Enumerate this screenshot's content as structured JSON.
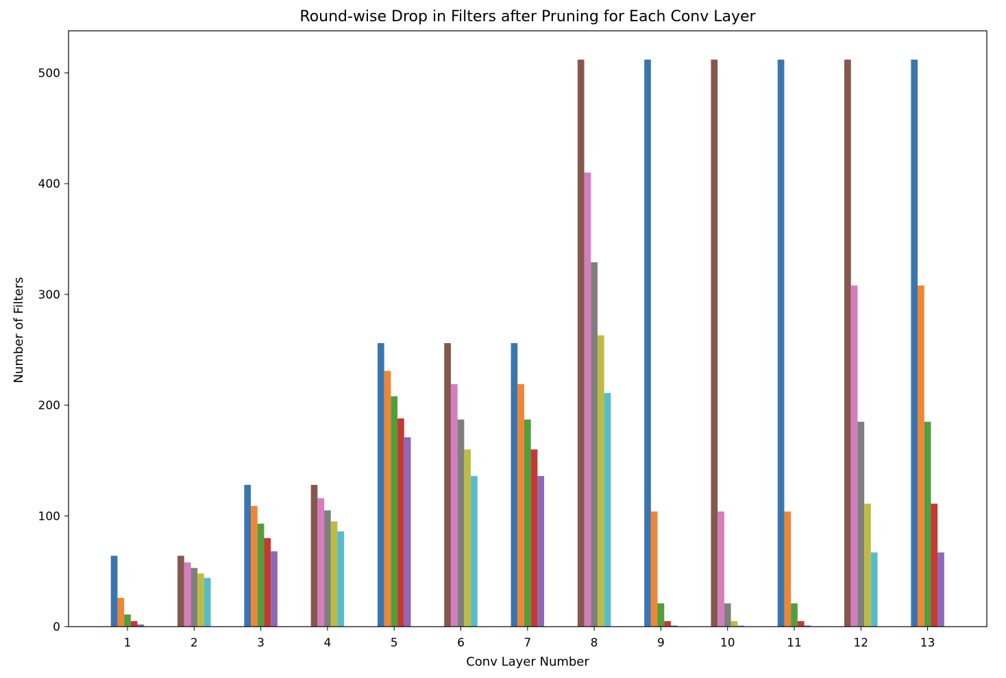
{
  "chart_data": {
    "type": "bar",
    "title": "Round-wise Drop in Filters after Pruning for Each Conv Layer",
    "xlabel": "Conv Layer Number",
    "ylabel": "Number of Filters",
    "ylim": [
      0,
      538
    ],
    "yticks": [
      0,
      100,
      200,
      300,
      400,
      500
    ],
    "categories": [
      "1",
      "2",
      "3",
      "4",
      "5",
      "6",
      "7",
      "8",
      "9",
      "10",
      "11",
      "12",
      "13"
    ],
    "grid": false,
    "palette": [
      "#3b75af",
      "#ef8636",
      "#519e3e",
      "#c53932",
      "#8d69b8",
      "#84584e",
      "#d57dbf",
      "#7f7f7f",
      "#bcbc45",
      "#58bbcc"
    ],
    "groups": [
      {
        "category": "1",
        "colors": [
          0,
          1,
          2,
          3,
          4
        ],
        "values": [
          64,
          26,
          11,
          5,
          2
        ]
      },
      {
        "category": "2",
        "colors": [
          5,
          6,
          7,
          8,
          9
        ],
        "values": [
          64,
          58,
          53,
          48,
          44
        ]
      },
      {
        "category": "3",
        "colors": [
          0,
          1,
          2,
          3,
          4
        ],
        "values": [
          128,
          109,
          93,
          80,
          68
        ]
      },
      {
        "category": "4",
        "colors": [
          5,
          6,
          7,
          8,
          9
        ],
        "values": [
          128,
          116,
          105,
          95,
          86
        ]
      },
      {
        "category": "5",
        "colors": [
          0,
          1,
          2,
          3,
          4
        ],
        "values": [
          256,
          231,
          208,
          188,
          171
        ]
      },
      {
        "category": "6",
        "colors": [
          5,
          6,
          7,
          8,
          9
        ],
        "values": [
          256,
          219,
          187,
          160,
          136
        ]
      },
      {
        "category": "7",
        "colors": [
          0,
          1,
          2,
          3,
          4
        ],
        "values": [
          256,
          219,
          187,
          160,
          136
        ]
      },
      {
        "category": "8",
        "colors": [
          5,
          6,
          7,
          8,
          9
        ],
        "values": [
          512,
          410,
          329,
          263,
          211
        ]
      },
      {
        "category": "9",
        "colors": [
          0,
          1,
          2,
          3,
          4
        ],
        "values": [
          512,
          104,
          21,
          5,
          1
        ]
      },
      {
        "category": "10",
        "colors": [
          5,
          6,
          7,
          8,
          9
        ],
        "values": [
          512,
          104,
          21,
          5,
          1
        ]
      },
      {
        "category": "11",
        "colors": [
          0,
          1,
          2,
          3,
          4
        ],
        "values": [
          512,
          104,
          21,
          5,
          1
        ]
      },
      {
        "category": "12",
        "colors": [
          5,
          6,
          7,
          8,
          9
        ],
        "values": [
          512,
          308,
          185,
          111,
          67
        ]
      },
      {
        "category": "13",
        "colors": [
          0,
          1,
          2,
          3,
          4
        ],
        "values": [
          512,
          308,
          185,
          111,
          67
        ]
      }
    ]
  }
}
